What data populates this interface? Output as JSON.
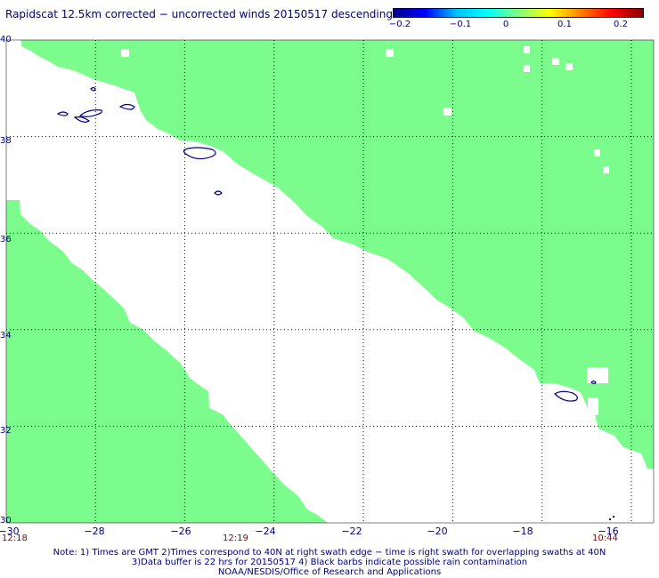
{
  "title": "Rapidscat 12.5km corrected − uncorrected winds 20150517 descending",
  "colorbar": {
    "labels": [
      "−0.2",
      "−0.1",
      "0",
      "0.1",
      "0.2"
    ],
    "gradient": [
      "#00008b",
      "#0000ff",
      "#00bfff",
      "#00ffff",
      "#7fff7f",
      "#ffff00",
      "#ff8000",
      "#ff0000",
      "#8b0000"
    ]
  },
  "colors": {
    "swath": "#7cfc8c",
    "grid": "#000080",
    "coast": "#000080"
  },
  "axes": {
    "x_ticks": [
      "−30",
      "−28",
      "−26",
      "−24",
      "−22",
      "−20",
      "−18",
      "−16"
    ],
    "y_ticks": [
      "40",
      "38",
      "36",
      "34",
      "32",
      "30"
    ],
    "lon_range": [
      -30,
      -15.5
    ],
    "lat_range": [
      30,
      40
    ]
  },
  "time_labels": [
    "12:18",
    "12:19",
    "10:44"
  ],
  "notes": [
    "Note: 1) Times are GMT 2)Times correspond to 40N at right swath edge − time is right swath for overlapping swaths at 40N",
    "3)Data buffer is 22 hrs for 20150517 4) Black barbs indicate possible rain contamination",
    "NOAA/NESDIS/Office of Research and Applications"
  ]
}
